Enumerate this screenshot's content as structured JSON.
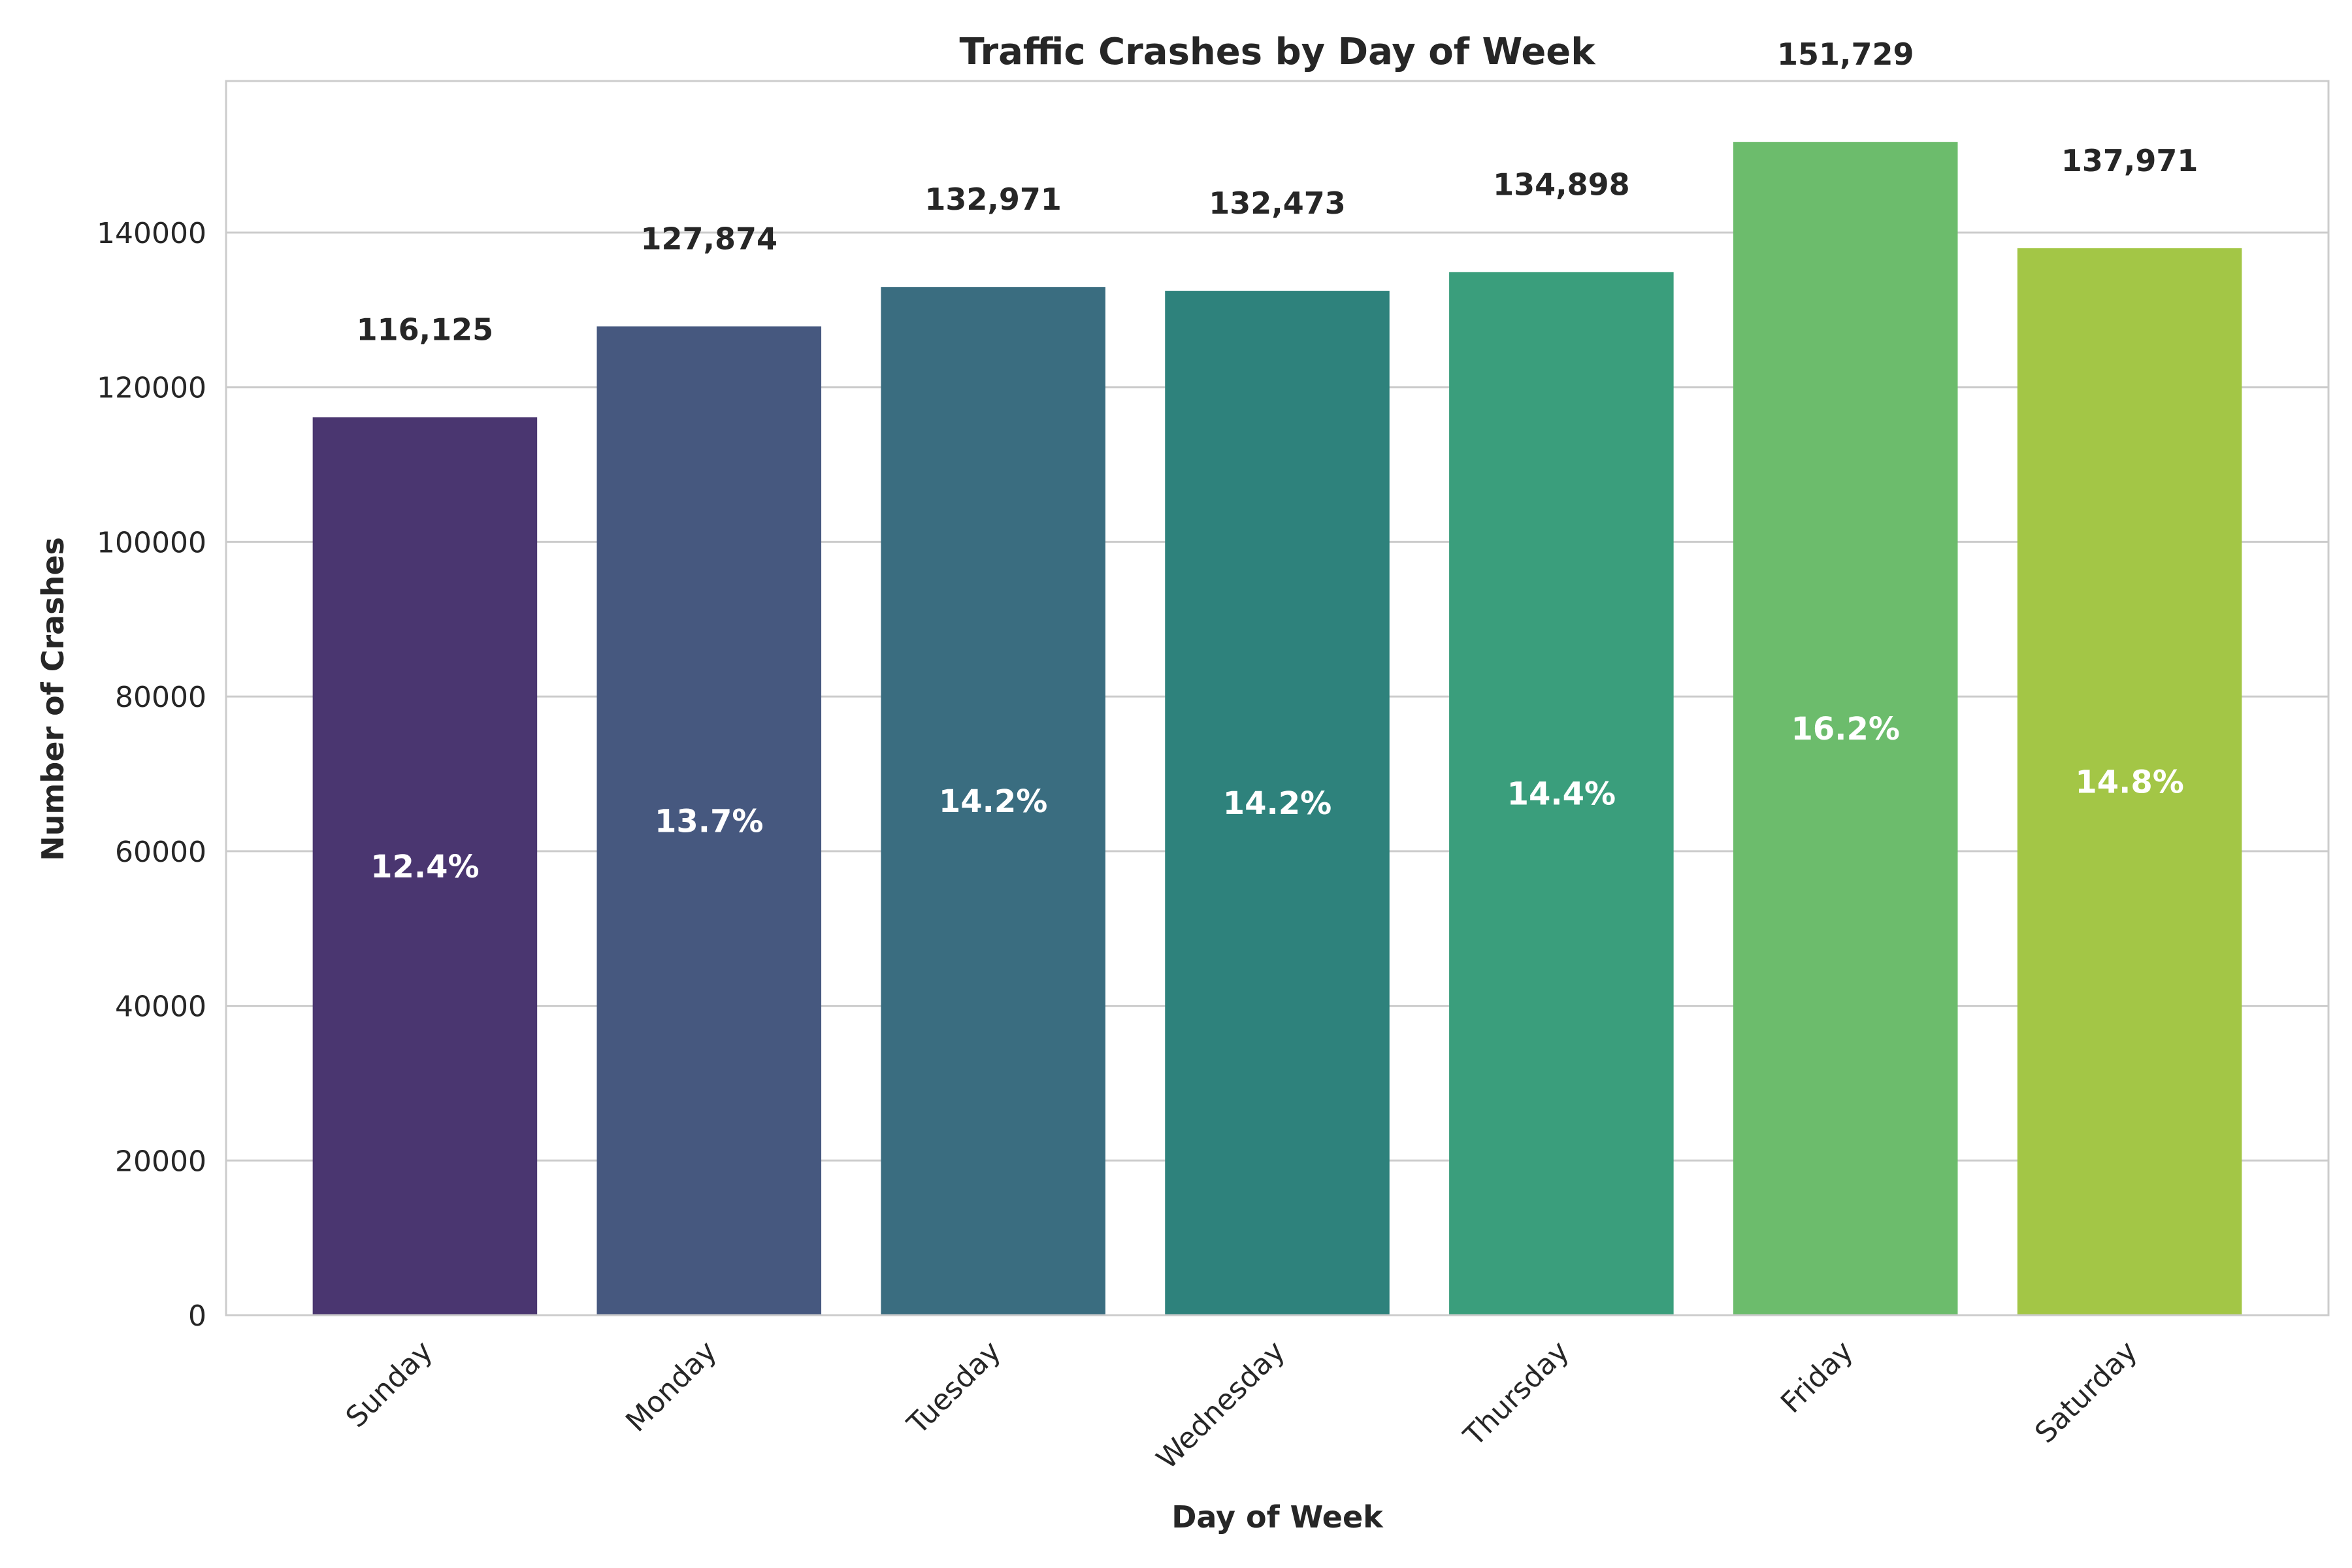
{
  "chart_data": {
    "type": "bar",
    "title": "Traffic Crashes by Day of Week",
    "xlabel": "Day of Week",
    "ylabel": "Number of Crashes",
    "categories": [
      "Sunday",
      "Monday",
      "Tuesday",
      "Wednesday",
      "Thursday",
      "Friday",
      "Saturday"
    ],
    "values": [
      116125,
      127874,
      132971,
      132473,
      134898,
      151729,
      137971
    ],
    "value_labels": [
      "116,125",
      "127,874",
      "132,971",
      "132,473",
      "134,898",
      "151,729",
      "137,971"
    ],
    "percent_labels": [
      "12.4%",
      "13.7%",
      "14.2%",
      "14.2%",
      "14.4%",
      "16.2%",
      "14.8%"
    ],
    "colors": [
      "#4a3670",
      "#46587f",
      "#3a6d80",
      "#2e827c",
      "#3a9e7c",
      "#6cbc6c",
      "#a3c646"
    ],
    "ylim": [
      0,
      159600
    ],
    "yticks": [
      0,
      20000,
      40000,
      60000,
      80000,
      100000,
      120000,
      140000
    ],
    "ytick_labels": [
      "0",
      "20000",
      "40000",
      "60000",
      "80000",
      "100000",
      "120000",
      "140000"
    ],
    "grid": "horizontal",
    "legend": "none"
  }
}
